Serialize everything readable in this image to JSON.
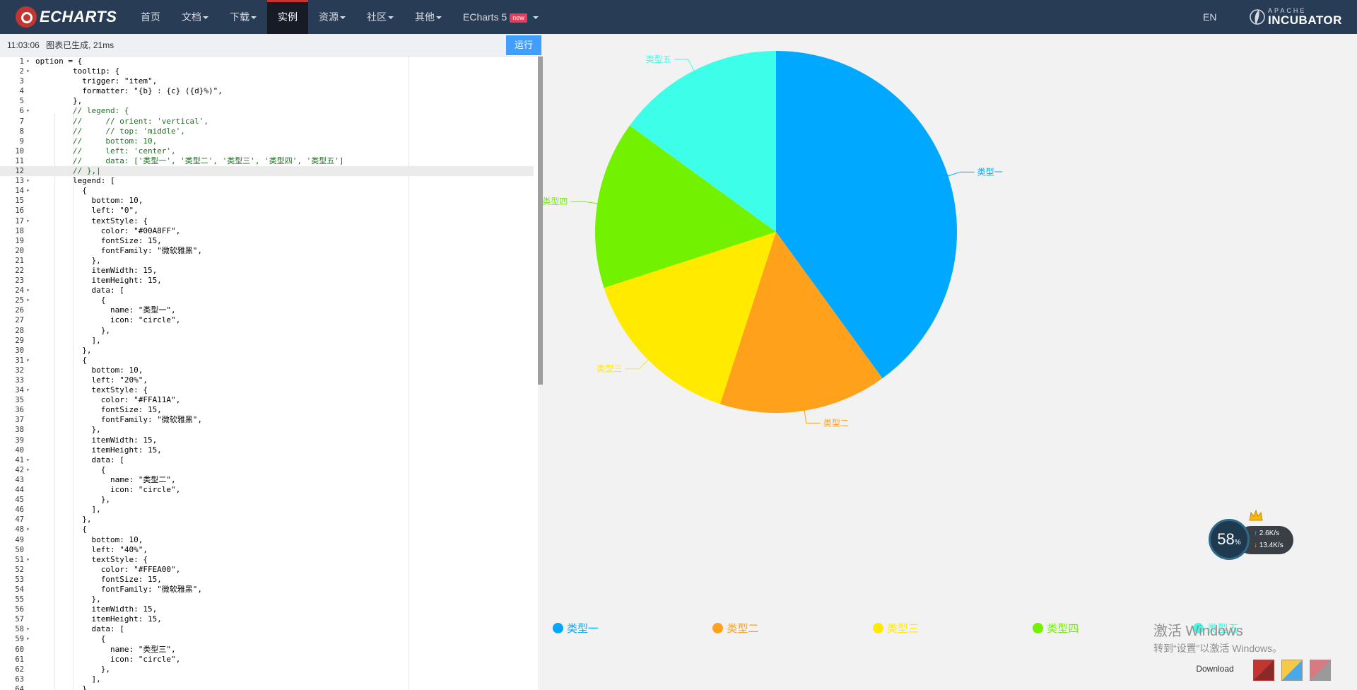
{
  "navbar": {
    "brand": "ECHARTS",
    "items": [
      {
        "label": "首页",
        "caret": false,
        "active": false
      },
      {
        "label": "文档",
        "caret": true,
        "active": false
      },
      {
        "label": "下载",
        "caret": true,
        "active": false
      },
      {
        "label": "实例",
        "caret": false,
        "active": true
      },
      {
        "label": "资源",
        "caret": true,
        "active": false
      },
      {
        "label": "社区",
        "caret": true,
        "active": false
      },
      {
        "label": "其他",
        "caret": true,
        "active": false
      }
    ],
    "echarts5": "ECharts 5",
    "new_badge": "new",
    "lang": "EN",
    "apache_top": "APACHE",
    "apache_bottom": "INCUBATOR"
  },
  "editor": {
    "status_time": "11:03:06",
    "status_msg": "图表已生成, 21ms",
    "run_label": "运行",
    "current_line": 12,
    "lines": [
      "option = {",
      "        tooltip: {",
      "          trigger: \"item\",",
      "          formatter: \"{b} : {c} ({d}%)\",",
      "        },",
      "        // legend: {",
      "        //     // orient: 'vertical',",
      "        //     // top: 'middle',",
      "        //     bottom: 10,",
      "        //     left: 'center',",
      "        //     data: ['类型一', '类型二', '类型三', '类型四', '类型五']",
      "        // },|",
      "        legend: [",
      "          {",
      "            bottom: 10,",
      "            left: \"0\",",
      "            textStyle: {",
      "              color: \"#00A8FF\",",
      "              fontSize: 15,",
      "              fontFamily: \"微软雅黑\",",
      "            },",
      "            itemWidth: 15,",
      "            itemHeight: 15,",
      "            data: [",
      "              {",
      "                name: \"类型一\",",
      "                icon: \"circle\",",
      "              },",
      "            ],",
      "          },",
      "          {",
      "            bottom: 10,",
      "            left: \"20%\",",
      "            textStyle: {",
      "              color: \"#FFA11A\",",
      "              fontSize: 15,",
      "              fontFamily: \"微软雅黑\",",
      "            },",
      "            itemWidth: 15,",
      "            itemHeight: 15,",
      "            data: [",
      "              {",
      "                name: \"类型二\",",
      "                icon: \"circle\",",
      "              },",
      "            ],",
      "          },",
      "          {",
      "            bottom: 10,",
      "            left: \"40%\",",
      "            textStyle: {",
      "              color: \"#FFEA00\",",
      "              fontSize: 15,",
      "              fontFamily: \"微软雅黑\",",
      "            },",
      "            itemWidth: 15,",
      "            itemHeight: 15,",
      "            data: [",
      "              {",
      "                name: \"类型三\",",
      "                icon: \"circle\",",
      "              },",
      "            ],",
      "          },"
    ],
    "fold_lines": [
      1,
      2,
      6,
      13,
      14,
      17,
      24,
      25,
      31,
      34,
      41,
      42,
      48,
      51,
      58,
      59
    ]
  },
  "chart_data": {
    "type": "pie",
    "slices": [
      {
        "name": "类型一",
        "value": 40,
        "color": "#00A8FF"
      },
      {
        "name": "类型二",
        "value": 15,
        "color": "#FFA11A"
      },
      {
        "name": "类型三",
        "value": 15,
        "color": "#FFEA00"
      },
      {
        "name": "类型四",
        "value": 15,
        "color": "#72F200"
      },
      {
        "name": "类型五",
        "value": 15,
        "color": "#3DFFE9"
      }
    ],
    "legend": [
      "类型一",
      "类型二",
      "类型三",
      "类型四",
      "类型五"
    ],
    "legend_placement": "bottom"
  },
  "watermark": {
    "line1": "激活 Windows",
    "line2": "转到“设置”以激活 Windows。"
  },
  "toolbar": {
    "download_label": "Download"
  },
  "net_widget": {
    "percent": "58",
    "percent_sign": "%",
    "up": "2.6",
    "up_unit": "K/s",
    "down": "13.4",
    "down_unit": "K/s"
  }
}
